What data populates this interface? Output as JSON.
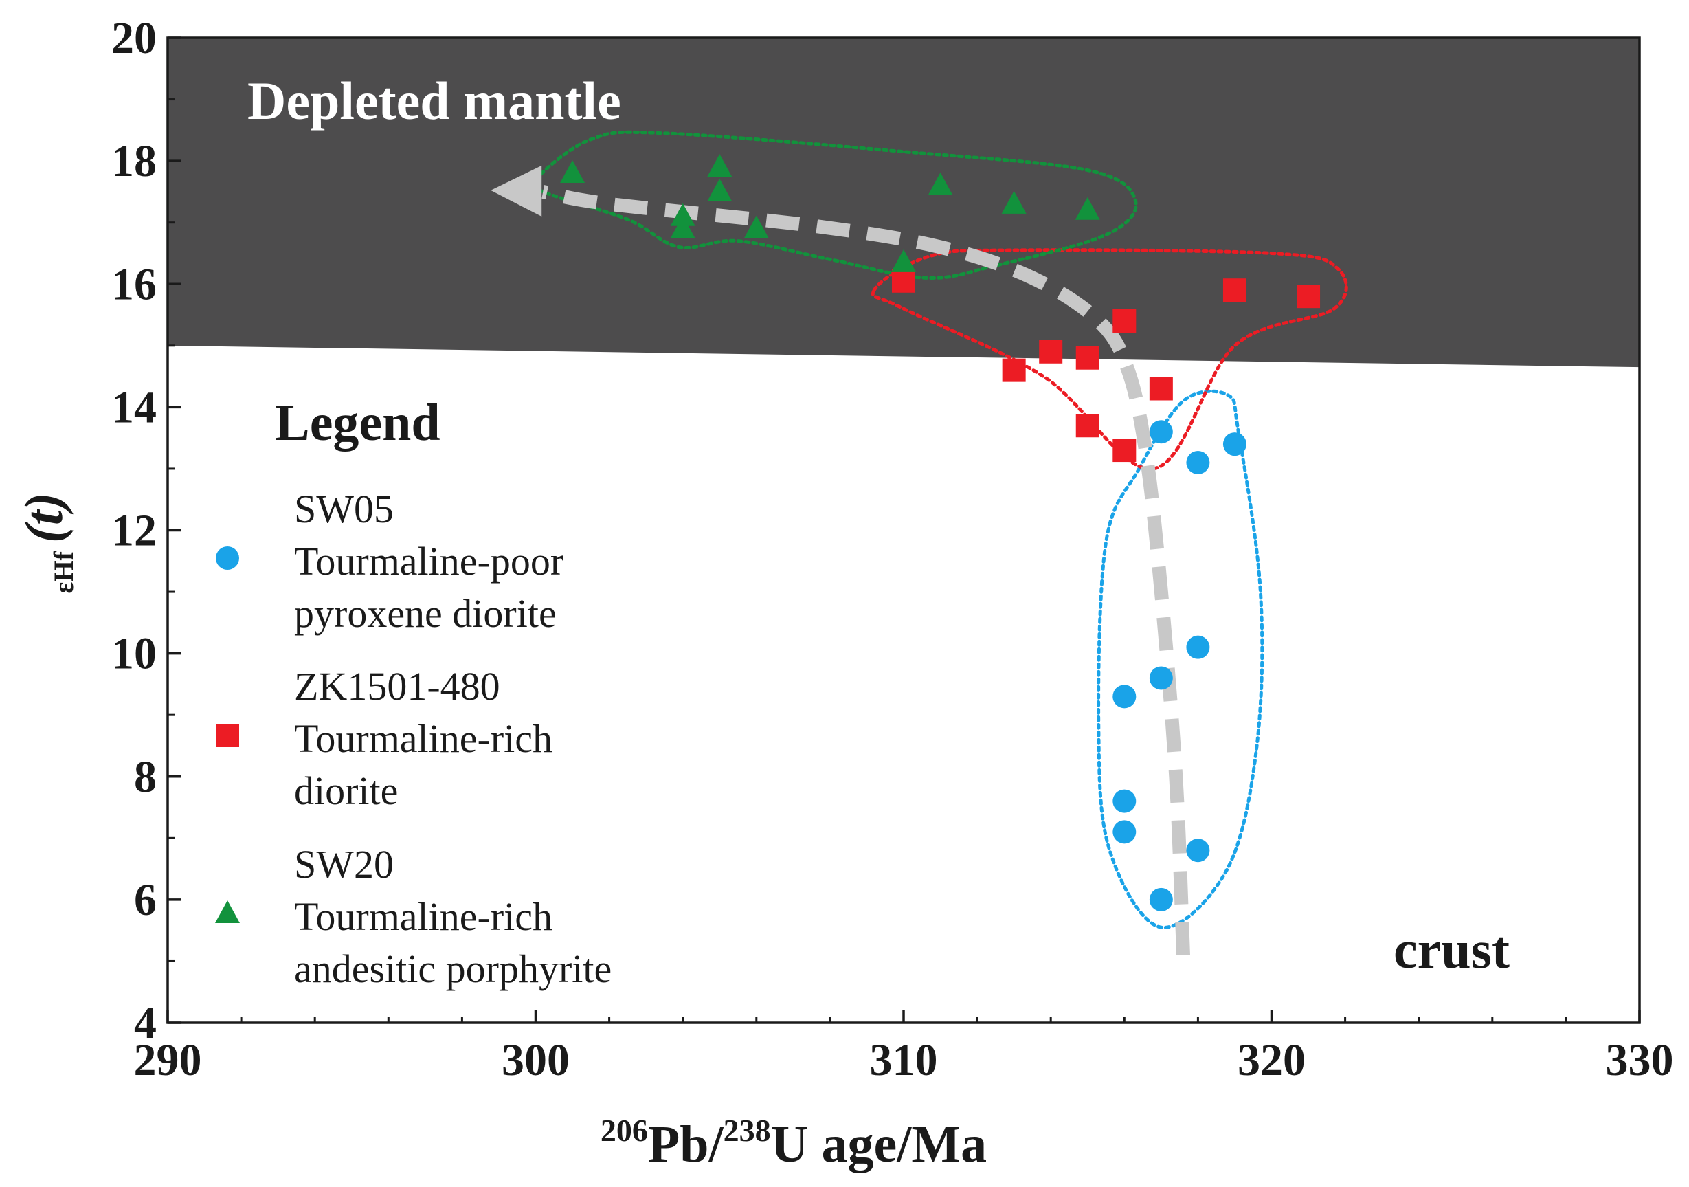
{
  "chart_data": {
    "type": "scatter",
    "title": "",
    "xlabel": {
      "sup1": "206",
      "part1": "Pb/",
      "sup2": "238",
      "part2": "U age/Ma"
    },
    "ylabel": {
      "prefix": "εHf",
      "suffix": "(t)"
    },
    "xlim": [
      290,
      330
    ],
    "ylim": [
      4,
      20
    ],
    "x_ticks": [
      290,
      300,
      310,
      320,
      330
    ],
    "y_ticks": [
      4,
      6,
      8,
      10,
      12,
      14,
      16,
      18,
      20
    ],
    "regions": {
      "mantle_label": "Depleted mantle",
      "crust_label": "crust",
      "boundary": [
        [
          290,
          15.0
        ],
        [
          330,
          14.65
        ]
      ],
      "mantle_color": "#4d4c4d",
      "crust_color": "#ffffff"
    },
    "legend": {
      "title": "Legend",
      "position": "left",
      "entries": [
        {
          "marker": "circle",
          "color": "#1aa3e8",
          "lines": [
            "SW05",
            "Tourmaline-poor",
            "pyroxene diorite"
          ]
        },
        {
          "marker": "square",
          "color": "#ec1c24",
          "lines": [
            "ZK1501-480",
            "Tourmaline-rich",
            "diorite"
          ]
        },
        {
          "marker": "triangle",
          "color": "#12923c",
          "lines": [
            "SW20",
            "Tourmaline-rich",
            "andesitic porphyrite"
          ]
        }
      ]
    },
    "series": [
      {
        "name": "SW05 Tourmaline-poor pyroxene diorite",
        "marker": "circle",
        "color": "#1aa3e8",
        "points": [
          [
            317,
            13.6
          ],
          [
            318,
            13.1
          ],
          [
            319,
            13.4
          ],
          [
            318,
            10.1
          ],
          [
            317,
            9.6
          ],
          [
            316,
            9.3
          ],
          [
            316,
            7.6
          ],
          [
            316,
            7.1
          ],
          [
            318,
            6.8
          ],
          [
            317,
            6.0
          ]
        ]
      },
      {
        "name": "ZK1501-480 Tourmaline-rich diorite",
        "marker": "square",
        "color": "#ec1c24",
        "points": [
          [
            310,
            16.05
          ],
          [
            316,
            15.4
          ],
          [
            319,
            15.9
          ],
          [
            321,
            15.8
          ],
          [
            314,
            14.9
          ],
          [
            315,
            14.8
          ],
          [
            313,
            14.6
          ],
          [
            317,
            14.3
          ],
          [
            315,
            13.7
          ],
          [
            316,
            13.3
          ]
        ]
      },
      {
        "name": "SW20 Tourmaline-rich andesitic porphyrite",
        "marker": "triangle",
        "color": "#12923c",
        "points": [
          [
            301,
            17.8
          ],
          [
            305,
            17.9
          ],
          [
            305,
            17.5
          ],
          [
            311,
            17.6
          ],
          [
            313,
            17.3
          ],
          [
            315,
            17.2
          ],
          [
            304,
            17.1
          ],
          [
            304,
            16.9
          ],
          [
            306,
            16.9
          ],
          [
            310,
            16.35
          ]
        ]
      }
    ],
    "envelopes": [
      {
        "color": "#1aa3e8",
        "points": [
          [
            316.4,
            13.0
          ],
          [
            317.6,
            14.1
          ],
          [
            318.8,
            14.2
          ],
          [
            319.1,
            13.6
          ],
          [
            319.7,
            11.0
          ],
          [
            319.6,
            8.5
          ],
          [
            318.8,
            6.5
          ],
          [
            317.0,
            5.55
          ],
          [
            315.6,
            6.8
          ],
          [
            315.3,
            8.8
          ],
          [
            315.5,
            11.8
          ]
        ]
      },
      {
        "color": "#ec1c24",
        "points": [
          [
            309.2,
            15.9
          ],
          [
            310.7,
            16.45
          ],
          [
            313.0,
            16.55
          ],
          [
            320.0,
            16.5
          ],
          [
            321.8,
            16.25
          ],
          [
            321.7,
            15.6
          ],
          [
            319.0,
            15.0
          ],
          [
            316.8,
            13.0
          ],
          [
            313.8,
            14.5
          ],
          [
            310.0,
            15.6
          ]
        ]
      },
      {
        "color": "#12923c",
        "points": [
          [
            300.0,
            17.7
          ],
          [
            301.5,
            18.35
          ],
          [
            303.5,
            18.45
          ],
          [
            310.0,
            18.15
          ],
          [
            315.0,
            17.85
          ],
          [
            316.3,
            17.35
          ],
          [
            315.5,
            16.8
          ],
          [
            312.5,
            16.3
          ],
          [
            310.6,
            16.1
          ],
          [
            308.0,
            16.4
          ],
          [
            305.5,
            16.7
          ],
          [
            303.9,
            16.6
          ],
          [
            302.5,
            17.05
          ],
          [
            300.2,
            17.5
          ]
        ]
      }
    ],
    "trend_arrow": {
      "color": "#c8c8c8",
      "points": [
        [
          317.6,
          5.1
        ],
        [
          317.4,
          8.0
        ],
        [
          317.0,
          11.0
        ],
        [
          316.6,
          13.2
        ],
        [
          316.1,
          14.6
        ],
        [
          315.3,
          15.4
        ],
        [
          313.5,
          16.1
        ],
        [
          311.0,
          16.6
        ],
        [
          307.5,
          16.95
        ],
        [
          302.0,
          17.3
        ],
        [
          300.2,
          17.5
        ]
      ],
      "direction": "toward-younger-ages"
    }
  }
}
